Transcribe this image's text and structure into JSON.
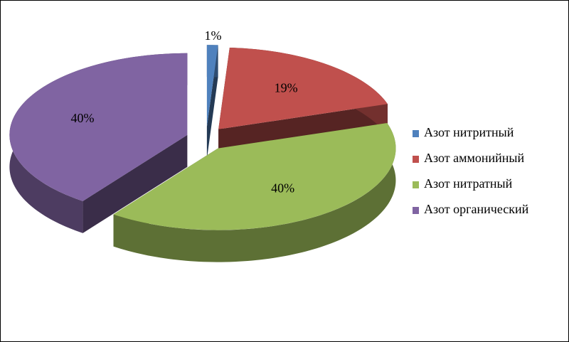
{
  "chart_data": {
    "type": "pie",
    "categories": [
      "Азот нитритный",
      "Азот аммонийный",
      "Азот нитратный",
      "Азот органический"
    ],
    "values": [
      1,
      19,
      40,
      40
    ],
    "value_labels": [
      "1%",
      "19%",
      "40%",
      "40%"
    ],
    "colors": [
      "#4f81bd",
      "#c0504d",
      "#9bbb59",
      "#8064a2"
    ],
    "legend": "right"
  }
}
